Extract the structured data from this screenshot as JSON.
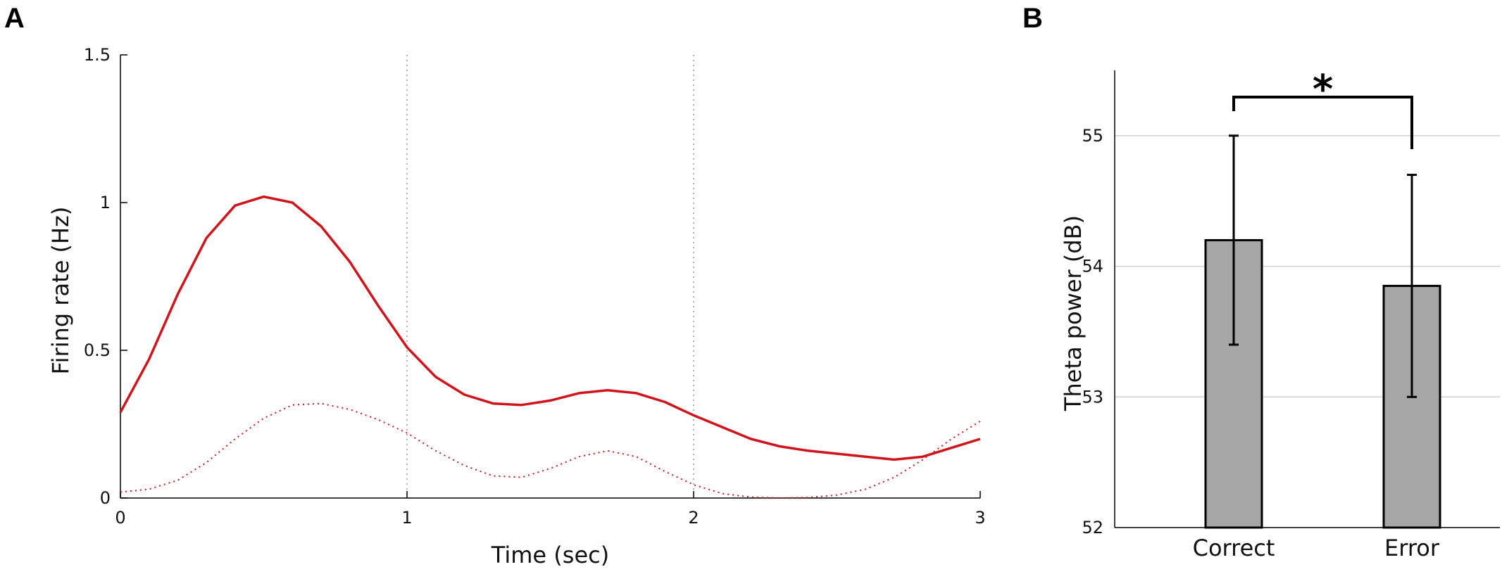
{
  "panels": {
    "a_label": "A",
    "b_label": "B"
  },
  "chart_data": [
    {
      "type": "line",
      "panel": "A",
      "xlabel": "Time (sec)",
      "ylabel": "Firing rate (Hz)",
      "xlim": [
        0,
        3
      ],
      "ylim": [
        0,
        1.5
      ],
      "xticks": [
        0,
        1,
        2,
        3
      ],
      "xtick_labels": [
        "0",
        "1",
        "2",
        "3"
      ],
      "yticks": [
        0,
        0.5,
        1,
        1.5
      ],
      "ytick_labels": [
        "0",
        "0.5",
        "1",
        "1.5"
      ],
      "vlines": [
        1,
        2
      ],
      "grid": false,
      "series": [
        {
          "style": "solid",
          "color": "#d0141b",
          "x": [
            0,
            0.1,
            0.2,
            0.3,
            0.4,
            0.5,
            0.6,
            0.7,
            0.8,
            0.9,
            1.0,
            1.1,
            1.2,
            1.3,
            1.4,
            1.5,
            1.6,
            1.7,
            1.8,
            1.9,
            2.0,
            2.1,
            2.2,
            2.3,
            2.4,
            2.5,
            2.6,
            2.7,
            2.8,
            2.9,
            3.0
          ],
          "y": [
            0.29,
            0.47,
            0.69,
            0.88,
            0.99,
            1.02,
            1.0,
            0.92,
            0.8,
            0.65,
            0.51,
            0.41,
            0.35,
            0.32,
            0.315,
            0.33,
            0.355,
            0.365,
            0.355,
            0.325,
            0.28,
            0.24,
            0.2,
            0.175,
            0.16,
            0.15,
            0.14,
            0.13,
            0.14,
            0.17,
            0.2
          ]
        },
        {
          "style": "dotted",
          "color": "#d0141b",
          "x": [
            0,
            0.1,
            0.2,
            0.3,
            0.4,
            0.5,
            0.6,
            0.7,
            0.8,
            0.9,
            1.0,
            1.1,
            1.2,
            1.3,
            1.4,
            1.5,
            1.6,
            1.7,
            1.8,
            1.9,
            2.0,
            2.1,
            2.2,
            2.3,
            2.4,
            2.5,
            2.6,
            2.7,
            2.8,
            2.9,
            3.0
          ],
          "y": [
            0.02,
            0.03,
            0.06,
            0.12,
            0.2,
            0.27,
            0.315,
            0.32,
            0.3,
            0.265,
            0.22,
            0.16,
            0.11,
            0.075,
            0.07,
            0.1,
            0.14,
            0.16,
            0.14,
            0.09,
            0.045,
            0.015,
            0.003,
            0.0,
            0.002,
            0.01,
            0.03,
            0.07,
            0.13,
            0.2,
            0.26
          ]
        }
      ]
    },
    {
      "type": "bar",
      "panel": "B",
      "categories": [
        "Correct",
        "Error"
      ],
      "values": [
        54.2,
        53.85
      ],
      "error_low": [
        53.4,
        53.0
      ],
      "error_high": [
        55.0,
        54.7
      ],
      "ylabel": "Theta power (dB)",
      "xlabel": "",
      "ylim": [
        52,
        55.5
      ],
      "yticks": [
        52,
        53,
        54,
        55
      ],
      "ytick_labels": [
        "52",
        "53",
        "54",
        "55"
      ],
      "grid": true,
      "bar_color": "#a6a6a6",
      "significance": "*"
    }
  ]
}
